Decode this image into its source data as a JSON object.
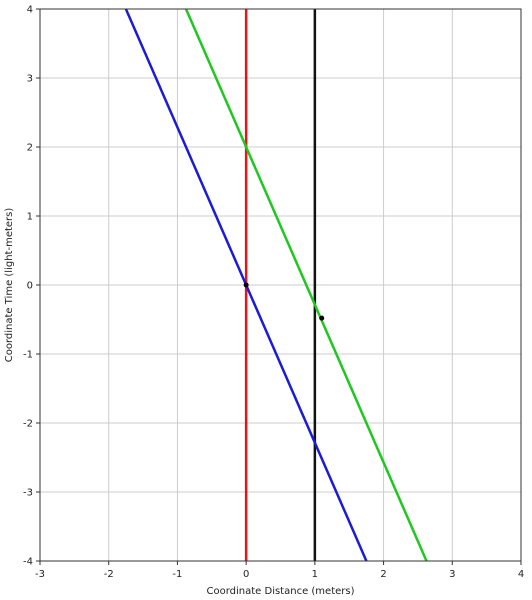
{
  "chart_data": {
    "type": "line",
    "title": "",
    "xlabel": "Coordinate Distance (meters)",
    "ylabel": "Coordinate Time (light-meters)",
    "xlim": [
      -3,
      4
    ],
    "ylim": [
      -4,
      4
    ],
    "xticks": [
      "-3",
      "-2",
      "-1",
      "0",
      "1",
      "2",
      "3",
      "4"
    ],
    "yticks": [
      "4",
      "3",
      "2",
      "1",
      "0",
      "-1",
      "-2",
      "-3",
      "-4"
    ],
    "grid": true,
    "legend": "none",
    "series": [
      {
        "color": "#ee1111",
        "x": [
          0,
          0
        ],
        "y": [
          -4,
          4
        ]
      },
      {
        "color": "#111111",
        "x": [
          1,
          1
        ],
        "y": [
          -4,
          4
        ]
      },
      {
        "color": "#1a1adb",
        "x": [
          -1.75,
          1.75
        ],
        "y": [
          4,
          -4
        ]
      },
      {
        "color": "#1ec81e",
        "x": [
          -0.875,
          2.625
        ],
        "y": [
          4,
          -4
        ]
      }
    ],
    "points": [
      {
        "x": 0,
        "y": 0,
        "color": "#000000"
      },
      {
        "x": 1.1,
        "y": -0.48,
        "color": "#000000"
      }
    ]
  }
}
